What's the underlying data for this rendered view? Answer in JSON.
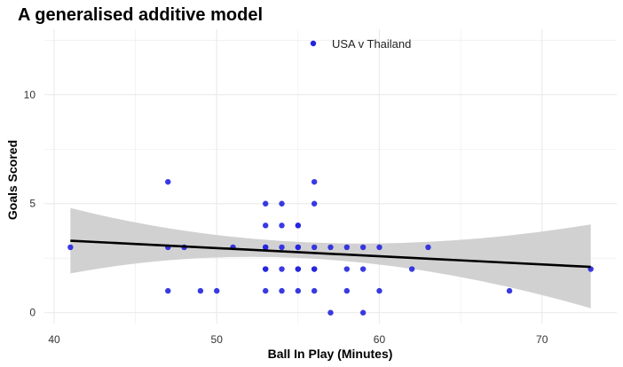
{
  "chart_data": {
    "type": "scatter",
    "title": "A generalised additive model",
    "xlabel": "Ball In Play (Minutes)",
    "ylabel": "Goals Scored",
    "xlim": [
      39.4,
      74.6
    ],
    "ylim": [
      -0.5,
      13.0
    ],
    "xticks": [
      40,
      50,
      60,
      70
    ],
    "yticks": [
      0,
      5,
      10
    ],
    "grid": true,
    "legend_position": "top-center",
    "colors": {
      "points": "#2323e0",
      "fit_line": "#000000",
      "ribbon": "#cfcfcf",
      "grid": "#ebebeb"
    },
    "series": [
      {
        "name": "USA v Thailand",
        "points": [
          [
            41,
            3
          ],
          [
            47,
            6
          ],
          [
            47,
            3
          ],
          [
            47,
            1
          ],
          [
            48,
            3
          ],
          [
            49,
            1
          ],
          [
            50,
            1
          ],
          [
            51,
            3
          ],
          [
            53,
            5
          ],
          [
            53,
            4
          ],
          [
            53,
            3
          ],
          [
            53,
            3
          ],
          [
            53,
            2
          ],
          [
            53,
            2
          ],
          [
            53,
            1
          ],
          [
            54,
            5
          ],
          [
            54,
            4
          ],
          [
            54,
            3
          ],
          [
            54,
            2
          ],
          [
            54,
            1
          ],
          [
            55,
            4
          ],
          [
            55,
            4
          ],
          [
            55,
            3
          ],
          [
            55,
            3
          ],
          [
            55,
            2
          ],
          [
            55,
            2
          ],
          [
            55,
            1
          ],
          [
            56,
            6
          ],
          [
            56,
            5
          ],
          [
            56,
            3
          ],
          [
            56,
            2
          ],
          [
            56,
            2
          ],
          [
            56,
            1
          ],
          [
            57,
            3
          ],
          [
            57,
            0
          ],
          [
            58,
            3
          ],
          [
            58,
            2
          ],
          [
            58,
            1
          ],
          [
            59,
            3
          ],
          [
            59,
            2
          ],
          [
            59,
            0
          ],
          [
            60,
            3
          ],
          [
            60,
            1
          ],
          [
            62,
            2
          ],
          [
            63,
            3
          ],
          [
            68,
            1
          ],
          [
            73,
            2
          ]
        ]
      }
    ],
    "fit": {
      "x": [
        41,
        73
      ],
      "y": [
        3.3,
        2.1
      ],
      "ci_lower": [
        1.8,
        0.2
      ],
      "ci_upper": [
        4.8,
        4.05
      ],
      "ci_x_mid": 56,
      "ci_mid_lower": [
        2.45
      ],
      "ci_mid_upper": [
        3.2
      ]
    }
  }
}
